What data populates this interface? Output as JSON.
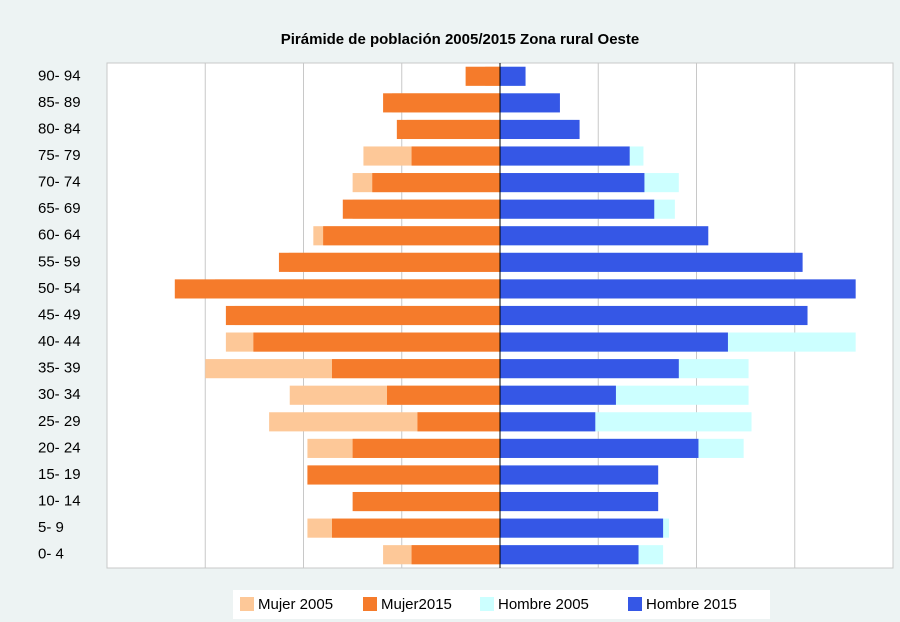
{
  "chart_data": {
    "type": "pyramid",
    "title": "Pirámide de población 2005/2015 Zona rural Oeste",
    "categories": [
      "0- 4",
      "5- 9",
      "10- 14",
      "15- 19",
      "20- 24",
      "25- 29",
      "30- 34",
      "35- 39",
      "40- 44",
      "45- 49",
      "50- 54",
      "55- 59",
      "60- 64",
      "65- 69",
      "70- 74",
      "75- 79",
      "80- 84",
      "85- 89",
      "90- 94"
    ],
    "series": [
      {
        "name": "Mujer 2005",
        "color": "#fdc898",
        "values": [
          -119,
          -196,
          -148,
          -196,
          -196,
          -235,
          -214,
          -300,
          -279,
          -270,
          -290,
          -215,
          -190,
          -150,
          -150,
          -139,
          -95,
          -110,
          -15
        ]
      },
      {
        "name": "Mujer2015",
        "color": "#f57b2b",
        "values": [
          -90,
          -171,
          -150,
          -196,
          -150,
          -84,
          -115,
          -171,
          -251,
          -279,
          -331,
          -225,
          -180,
          -160,
          -130,
          -90,
          -105,
          -119,
          -35
        ]
      },
      {
        "name": "Hombre 2005",
        "color": "#ccffff",
        "values": [
          166,
          172,
          155,
          155,
          248,
          256,
          253,
          253,
          362,
          269,
          300,
          280,
          200,
          178,
          182,
          146,
          75,
          55,
          20
        ]
      },
      {
        "name": "Hombre 2015",
        "color": "#3557e6",
        "values": [
          141,
          166,
          161,
          161,
          202,
          97,
          118,
          182,
          232,
          313,
          362,
          308,
          212,
          157,
          147,
          132,
          81,
          61,
          26
        ]
      }
    ],
    "xlim": [
      -400,
      400
    ],
    "xticks": [
      -300,
      -200,
      -100,
      0,
      100,
      200,
      300
    ],
    "grid": true,
    "legend": "bottom"
  }
}
